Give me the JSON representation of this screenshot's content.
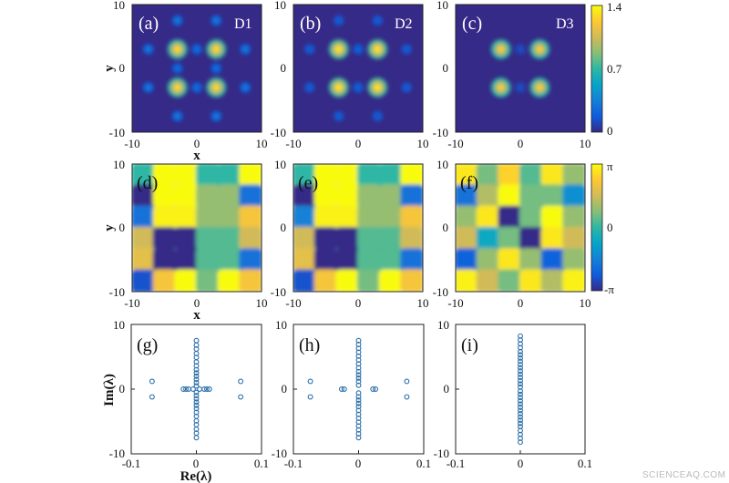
{
  "figure": {
    "watermark": "SCIENCEAQ.COM",
    "colors": {
      "parula": [
        "#352a87",
        "#0f5cdd",
        "#1481d6",
        "#06a4ca",
        "#2eb7a4",
        "#87bf77",
        "#d1bb59",
        "#fec832",
        "#f9fb0e"
      ],
      "marker": "#2b6ea8"
    },
    "density_panels": [
      {
        "label": "(a)",
        "tag": "D1",
        "x_ticks": [
          "-10",
          "0",
          "10"
        ],
        "y_ticks": [
          "10",
          "0",
          "-10"
        ],
        "ylabel": "y",
        "xlabel": "x"
      },
      {
        "label": "(b)",
        "tag": "D2",
        "x_ticks": [
          "-10",
          "0",
          "10"
        ],
        "y_ticks": [
          "10",
          "0",
          "-10"
        ]
      },
      {
        "label": "(c)",
        "tag": "D3",
        "x_ticks": [
          "-10",
          "0",
          "10"
        ],
        "y_ticks": [
          "10",
          "0",
          "-10"
        ]
      }
    ],
    "density_colorbar": {
      "ticks": [
        "1.4",
        "0.7",
        "0"
      ],
      "range": [
        0,
        1.4
      ]
    },
    "phase_panels": [
      {
        "label": "(d)",
        "x_ticks": [
          "-10",
          "0",
          "10"
        ],
        "y_ticks": [
          "10",
          "0",
          "-10"
        ],
        "ylabel": "y",
        "xlabel": "x"
      },
      {
        "label": "(e)",
        "x_ticks": [
          "-10",
          "0",
          "10"
        ],
        "y_ticks": [
          "10",
          "0",
          "-10"
        ]
      },
      {
        "label": "(f)",
        "x_ticks": [
          "-10",
          "0",
          "10"
        ],
        "y_ticks": [
          "10",
          "0",
          "-10"
        ]
      }
    ],
    "phase_colorbar": {
      "ticks": [
        "π",
        "0",
        "-π"
      ]
    },
    "spectrum_panels": [
      {
        "label": "(g)",
        "x_ticks": [
          "-0.1",
          "0",
          "0.1"
        ],
        "y_ticks": [
          "10",
          "0",
          "-10"
        ],
        "ylabel": "Im(λ)",
        "xlabel": "Re(λ)"
      },
      {
        "label": "(h)",
        "x_ticks": [
          "-0.1",
          "0",
          "0.1"
        ],
        "y_ticks": [
          "10",
          "0",
          "-10"
        ]
      },
      {
        "label": "(i)",
        "x_ticks": [
          "-0.1",
          "0",
          "0.1"
        ],
        "y_ticks": [
          "10",
          "0",
          "-10"
        ]
      }
    ]
  },
  "chart_data": [
    {
      "type": "heatmap",
      "panel": "(a)",
      "title": "D1",
      "xlabel": "x",
      "ylabel": "y",
      "xlim": [
        -10,
        10
      ],
      "ylim": [
        -10,
        10
      ],
      "colorbar_range": [
        0,
        1.4
      ],
      "peaks": [
        {
          "x": -3,
          "y": 3,
          "amp": 1.3
        },
        {
          "x": 3,
          "y": 3,
          "amp": 1.3
        },
        {
          "x": -3,
          "y": -3,
          "amp": 1.3
        },
        {
          "x": 3,
          "y": -3,
          "amp": 1.3
        },
        {
          "x": -3,
          "y": 7.5,
          "amp": 0.35
        },
        {
          "x": 3,
          "y": 7.5,
          "amp": 0.35
        },
        {
          "x": -3,
          "y": -7.5,
          "amp": 0.35
        },
        {
          "x": 3,
          "y": -7.5,
          "amp": 0.35
        },
        {
          "x": -7.5,
          "y": 3,
          "amp": 0.35
        },
        {
          "x": -7.5,
          "y": -3,
          "amp": 0.35
        },
        {
          "x": 7.5,
          "y": 3,
          "amp": 0.35
        },
        {
          "x": 7.5,
          "y": -3,
          "amp": 0.35
        },
        {
          "x": 0,
          "y": 3,
          "amp": 0.3
        },
        {
          "x": 0,
          "y": -3,
          "amp": 0.3
        },
        {
          "x": -3,
          "y": 0,
          "amp": 0.3
        },
        {
          "x": 3,
          "y": 0,
          "amp": 0.3
        }
      ]
    },
    {
      "type": "heatmap",
      "panel": "(b)",
      "title": "D2",
      "xlabel": "x",
      "ylabel": "y",
      "xlim": [
        -10,
        10
      ],
      "ylim": [
        -10,
        10
      ],
      "colorbar_range": [
        0,
        1.4
      ],
      "peaks": [
        {
          "x": -3,
          "y": 3,
          "amp": 1.35
        },
        {
          "x": 3,
          "y": 3,
          "amp": 1.35
        },
        {
          "x": -3,
          "y": -3,
          "amp": 1.35
        },
        {
          "x": 3,
          "y": -3,
          "amp": 1.35
        },
        {
          "x": -3,
          "y": 7.5,
          "amp": 0.22
        },
        {
          "x": 3,
          "y": 7.5,
          "amp": 0.22
        },
        {
          "x": -3,
          "y": -7.5,
          "amp": 0.22
        },
        {
          "x": 3,
          "y": -7.5,
          "amp": 0.22
        },
        {
          "x": -7.5,
          "y": 3,
          "amp": 0.22
        },
        {
          "x": -7.5,
          "y": -3,
          "amp": 0.22
        },
        {
          "x": 7.5,
          "y": 3,
          "amp": 0.22
        },
        {
          "x": 7.5,
          "y": -3,
          "amp": 0.22
        },
        {
          "x": 0,
          "y": 3,
          "amp": 0.25
        },
        {
          "x": 0,
          "y": -3,
          "amp": 0.25
        }
      ]
    },
    {
      "type": "heatmap",
      "panel": "(c)",
      "title": "D3",
      "xlabel": "x",
      "ylabel": "y",
      "xlim": [
        -10,
        10
      ],
      "ylim": [
        -10,
        10
      ],
      "colorbar_range": [
        0,
        1.4
      ],
      "peaks": [
        {
          "x": -3,
          "y": 3,
          "amp": 1.25
        },
        {
          "x": 3,
          "y": 3,
          "amp": 1.25
        },
        {
          "x": -3,
          "y": -3,
          "amp": 1.25
        },
        {
          "x": 3,
          "y": -3,
          "amp": 1.25
        },
        {
          "x": 0,
          "y": 3,
          "amp": 0.15
        },
        {
          "x": 0,
          "y": -3,
          "amp": 0.15
        }
      ]
    },
    {
      "type": "heatmap",
      "panel": "(d)",
      "xlabel": "x",
      "ylabel": "y",
      "xlim": [
        -10,
        10
      ],
      "ylim": [
        -10,
        10
      ],
      "colorbar_range": [
        "-π",
        "π"
      ],
      "phase_grid": [
        [
          0,
          1,
          1,
          0,
          0,
          1
        ],
        [
          -1,
          1,
          1,
          0.3,
          0.3,
          -0.6
        ],
        [
          -0.6,
          0.95,
          0.95,
          0.3,
          0.3,
          0.7
        ],
        [
          0.5,
          -1,
          -1,
          0.1,
          0.1,
          0.5
        ],
        [
          0.6,
          -1,
          -1,
          0.1,
          0.1,
          -0.6
        ],
        [
          -0.8,
          0.7,
          1,
          0.2,
          1,
          0.7
        ]
      ]
    },
    {
      "type": "heatmap",
      "panel": "(e)",
      "xlabel": "x",
      "ylabel": "y",
      "xlim": [
        -10,
        10
      ],
      "ylim": [
        -10,
        10
      ],
      "colorbar_range": [
        "-π",
        "π"
      ],
      "phase_grid": [
        [
          0,
          1,
          1,
          0,
          0,
          1
        ],
        [
          -1,
          1,
          1,
          0.3,
          0.3,
          -0.6
        ],
        [
          -0.5,
          0.95,
          0.95,
          0.3,
          0.3,
          0.7
        ],
        [
          0.5,
          -1,
          -1,
          0.1,
          0.1,
          0.5
        ],
        [
          0.6,
          -1,
          -1,
          0.1,
          0.1,
          -0.6
        ],
        [
          -0.8,
          0.7,
          1,
          0.2,
          1,
          0.7
        ]
      ]
    },
    {
      "type": "heatmap",
      "panel": "(f)",
      "xlabel": "x",
      "ylabel": "y",
      "xlim": [
        -10,
        10
      ],
      "ylim": [
        -10,
        10
      ],
      "colorbar_range": [
        "-π",
        "π"
      ],
      "phase_grid": [
        [
          0.9,
          0.2,
          0.8,
          0.1,
          0.9,
          0.3
        ],
        [
          -0.6,
          0.4,
          1,
          0.2,
          0.2,
          -0.4
        ],
        [
          0.3,
          0.9,
          -1,
          0.2,
          1,
          0.3
        ],
        [
          0.5,
          -0.2,
          0.2,
          -1,
          0.9,
          0.5
        ],
        [
          -0.7,
          0.3,
          0.9,
          0.3,
          -0.7,
          0.3
        ],
        [
          0.95,
          0.5,
          0.2,
          0.9,
          0.4,
          0.95
        ]
      ]
    },
    {
      "type": "scatter",
      "panel": "(g)",
      "xlabel": "Re(λ)",
      "ylabel": "Im(λ)",
      "xlim": [
        -0.1,
        0.1
      ],
      "ylim": [
        -10,
        10
      ],
      "imag_axis_points": [
        -7.5,
        -6.8,
        -6.2,
        -5.5,
        -4.9,
        -4.2,
        -3.6,
        -3.0,
        -2.5,
        -2.0,
        -1.5,
        -1.0,
        -0.5,
        0.5,
        1.0,
        1.5,
        2.0,
        2.5,
        3.0,
        3.6,
        4.2,
        4.9,
        5.5,
        6.2,
        6.8,
        7.5
      ],
      "off_axis_points": [
        {
          "re": -0.068,
          "im": 1.2
        },
        {
          "re": -0.068,
          "im": -1.2
        },
        {
          "re": 0.068,
          "im": 1.2
        },
        {
          "re": 0.068,
          "im": -1.2
        },
        {
          "re": -0.02,
          "im": 0
        },
        {
          "re": -0.016,
          "im": 0
        },
        {
          "re": -0.012,
          "im": 0
        },
        {
          "re": -0.005,
          "im": 0
        },
        {
          "re": 0.005,
          "im": 0
        },
        {
          "re": 0.012,
          "im": 0
        },
        {
          "re": 0.016,
          "im": 0
        },
        {
          "re": 0.02,
          "im": 0
        }
      ]
    },
    {
      "type": "scatter",
      "panel": "(h)",
      "xlabel": "Re(λ)",
      "ylabel": "Im(λ)",
      "xlim": [
        -0.1,
        0.1
      ],
      "ylim": [
        -10,
        10
      ],
      "imag_axis_points": [
        -7.5,
        -6.9,
        -6.3,
        -5.7,
        -5.1,
        -4.5,
        -3.9,
        -3.3,
        -2.7,
        -2.2,
        -1.7,
        -1.2,
        -0.6,
        0.6,
        1.2,
        1.7,
        2.2,
        2.7,
        3.3,
        3.9,
        4.5,
        5.1,
        5.7,
        6.3,
        6.9,
        7.5
      ],
      "off_axis_points": [
        {
          "re": -0.074,
          "im": 1.2
        },
        {
          "re": -0.074,
          "im": -1.2
        },
        {
          "re": 0.074,
          "im": 1.2
        },
        {
          "re": 0.074,
          "im": -1.2
        },
        {
          "re": -0.026,
          "im": 0
        },
        {
          "re": -0.022,
          "im": 0
        },
        {
          "re": 0.022,
          "im": 0
        },
        {
          "re": 0.026,
          "im": 0
        }
      ]
    },
    {
      "type": "scatter",
      "panel": "(i)",
      "xlabel": "Re(λ)",
      "ylabel": "Im(λ)",
      "xlim": [
        -0.1,
        0.1
      ],
      "ylim": [
        -10,
        10
      ],
      "imag_axis_points": [
        -8.2,
        -7.6,
        -7.0,
        -6.4,
        -5.8,
        -5.3,
        -4.8,
        -4.3,
        -3.8,
        -3.3,
        -2.8,
        -2.3,
        -1.8,
        -1.3,
        -0.8,
        -0.3,
        0.3,
        0.8,
        1.3,
        1.8,
        2.3,
        2.8,
        3.3,
        3.8,
        4.3,
        4.8,
        5.3,
        5.8,
        6.4,
        7.0,
        7.6,
        8.2
      ],
      "off_axis_points": []
    }
  ]
}
